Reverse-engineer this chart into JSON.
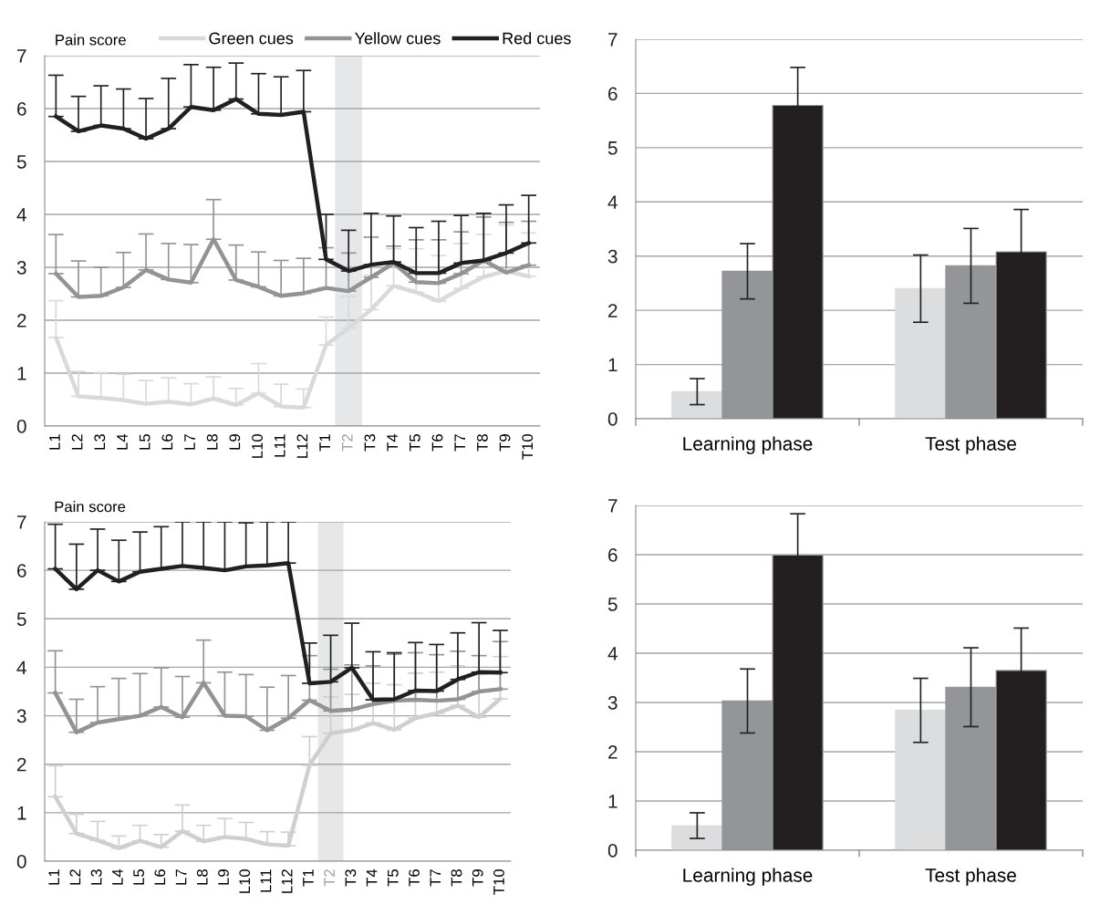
{
  "chart_data": [
    {
      "type": "line",
      "ylabel": "Pain score",
      "categories": [
        "L1",
        "L2",
        "L3",
        "L4",
        "L5",
        "L6",
        "L7",
        "L8",
        "L9",
        "L10",
        "L11",
        "L12",
        "T1",
        "T2",
        "T3",
        "T4",
        "T5",
        "T6",
        "T7",
        "T8",
        "T9",
        "T10"
      ],
      "ylim": [
        0,
        7
      ],
      "yticks": [
        0,
        1,
        2,
        3,
        4,
        5,
        6,
        7
      ],
      "grid": "y",
      "legend": "top",
      "marker": "none",
      "line_style": "solid",
      "bands": [
        {
          "axis": "x",
          "from": "T2",
          "to": "T2",
          "color": "#e6e7e8"
        }
      ],
      "series": [
        {
          "name": "Green cues",
          "color": "#d9d9d9",
          "values": [
            1.67,
            0.56,
            0.53,
            0.49,
            0.42,
            0.46,
            0.41,
            0.52,
            0.4,
            0.62,
            0.37,
            0.35,
            1.53,
            1.85,
            2.2,
            2.65,
            2.53,
            2.36,
            2.6,
            2.82,
            2.93,
            2.83
          ],
          "errors": [
            [
              1.67,
              2.37
            ],
            [
              0.56,
              1.03
            ],
            [
              0.53,
              1.01
            ],
            [
              0.49,
              0.98
            ],
            [
              0.42,
              0.86
            ],
            [
              0.46,
              0.91
            ],
            [
              0.41,
              0.8
            ],
            [
              0.52,
              0.93
            ],
            [
              0.4,
              0.71
            ],
            [
              0.62,
              1.18
            ],
            [
              0.37,
              0.79
            ],
            [
              0.35,
              0.7
            ],
            [
              1.53,
              2.06
            ],
            [
              1.85,
              2.45
            ],
            [
              2.2,
              2.85
            ],
            [
              2.65,
              3.35
            ],
            [
              2.53,
              3.35
            ],
            [
              2.36,
              3.22
            ],
            [
              2.6,
              3.45
            ],
            [
              2.82,
              3.62
            ],
            [
              2.93,
              3.8
            ],
            [
              2.83,
              3.65
            ]
          ]
        },
        {
          "name": "Yellow cues",
          "color": "#939393",
          "values": [
            2.88,
            2.44,
            2.46,
            2.62,
            2.95,
            2.77,
            2.71,
            3.53,
            2.76,
            2.63,
            2.46,
            2.51,
            2.61,
            2.55,
            2.81,
            3.08,
            2.72,
            2.7,
            2.88,
            3.13,
            2.9,
            3.04
          ],
          "errors": [
            [
              2.88,
              3.62
            ],
            [
              2.44,
              3.12
            ],
            [
              2.46,
              3.0
            ],
            [
              2.62,
              3.28
            ],
            [
              2.95,
              3.63
            ],
            [
              2.77,
              3.45
            ],
            [
              2.71,
              3.43
            ],
            [
              3.53,
              4.28
            ],
            [
              2.76,
              3.42
            ],
            [
              2.63,
              3.29
            ],
            [
              2.46,
              3.13
            ],
            [
              2.51,
              3.17
            ],
            [
              2.61,
              3.37
            ],
            [
              2.55,
              3.27
            ],
            [
              2.81,
              3.57
            ],
            [
              3.08,
              3.4
            ],
            [
              2.72,
              3.52
            ],
            [
              2.7,
              3.52
            ],
            [
              2.88,
              3.67
            ],
            [
              3.13,
              3.95
            ],
            [
              2.9,
              3.85
            ],
            [
              3.04,
              3.87
            ]
          ]
        },
        {
          "name": "Red cues",
          "color": "#231f20",
          "values": [
            5.85,
            5.57,
            5.68,
            5.62,
            5.43,
            5.62,
            6.03,
            5.97,
            6.18,
            5.9,
            5.88,
            5.94,
            3.15,
            2.93,
            3.05,
            3.1,
            2.89,
            2.89,
            3.08,
            3.13,
            3.27,
            3.46
          ],
          "errors": [
            [
              5.85,
              6.63
            ],
            [
              5.57,
              6.23
            ],
            [
              5.68,
              6.43
            ],
            [
              5.62,
              6.37
            ],
            [
              5.43,
              6.19
            ],
            [
              5.62,
              6.57
            ],
            [
              6.03,
              6.83
            ],
            [
              5.97,
              6.78
            ],
            [
              6.18,
              6.86
            ],
            [
              5.9,
              6.66
            ],
            [
              5.88,
              6.6
            ],
            [
              5.94,
              6.72
            ],
            [
              3.15,
              4.0
            ],
            [
              2.93,
              3.7
            ],
            [
              3.05,
              4.02
            ],
            [
              3.1,
              3.97
            ],
            [
              2.89,
              3.75
            ],
            [
              2.89,
              3.87
            ],
            [
              3.08,
              3.98
            ],
            [
              3.13,
              4.02
            ],
            [
              3.27,
              4.18
            ],
            [
              3.46,
              4.36
            ]
          ]
        }
      ]
    },
    {
      "type": "bar",
      "categories": [
        "Learning phase",
        "Test phase"
      ],
      "ylim": [
        0,
        7
      ],
      "yticks": [
        0,
        1,
        2,
        3,
        4,
        5,
        6,
        7
      ],
      "grid": "y",
      "series": [
        {
          "color": "#dcdddf",
          "values": [
            0.5,
            2.4
          ],
          "errors": [
            0.24,
            0.62
          ]
        },
        {
          "color": "#949598",
          "values": [
            2.72,
            2.82
          ],
          "errors": [
            0.51,
            0.69
          ]
        },
        {
          "color": "#231f20",
          "values": [
            5.78,
            3.08
          ],
          "errors": [
            0.7,
            0.78
          ]
        }
      ]
    },
    {
      "type": "line",
      "ylabel": "Pain score",
      "categories": [
        "L1",
        "L2",
        "L3",
        "L4",
        "L5",
        "L6",
        "L7",
        "L8",
        "L9",
        "L10",
        "L11",
        "L12",
        "T1",
        "T2",
        "T3",
        "T4",
        "T5",
        "T6",
        "T7",
        "T8",
        "T9",
        "T10"
      ],
      "ylim": [
        0,
        7
      ],
      "yticks": [
        0,
        1,
        2,
        3,
        4,
        5,
        6,
        7
      ],
      "grid": "y",
      "marker": "none",
      "line_style": "solid",
      "bands": [
        {
          "axis": "x",
          "from": "T2",
          "to": "T2",
          "color": "#e6e7e8"
        }
      ],
      "series": [
        {
          "color": "#cfcfcf",
          "values": [
            1.33,
            0.57,
            0.43,
            0.27,
            0.42,
            0.29,
            0.62,
            0.41,
            0.5,
            0.46,
            0.35,
            0.32,
            1.98,
            2.64,
            2.7,
            2.85,
            2.71,
            2.95,
            3.05,
            3.21,
            2.97,
            3.35
          ],
          "errors": [
            [
              1.33,
              1.97
            ],
            [
              0.57,
              0.97
            ],
            [
              0.43,
              0.82
            ],
            [
              0.27,
              0.52
            ],
            [
              0.42,
              0.74
            ],
            [
              0.29,
              0.55
            ],
            [
              0.62,
              1.16
            ],
            [
              0.41,
              0.74
            ],
            [
              0.5,
              0.88
            ],
            [
              0.46,
              0.8
            ],
            [
              0.35,
              0.61
            ],
            [
              0.32,
              0.6
            ],
            [
              1.98,
              2.57
            ],
            [
              2.64,
              3.39
            ],
            [
              2.7,
              3.44
            ],
            [
              2.85,
              3.67
            ],
            [
              2.71,
              3.64
            ],
            [
              2.95,
              3.88
            ],
            [
              3.05,
              3.9
            ],
            [
              3.21,
              4.03
            ],
            [
              2.97,
              3.86
            ],
            [
              3.35,
              4.22
            ]
          ]
        },
        {
          "color": "#939393",
          "values": [
            3.47,
            2.66,
            2.86,
            2.93,
            3.0,
            3.18,
            2.97,
            3.68,
            3.0,
            2.99,
            2.7,
            2.95,
            3.32,
            3.1,
            3.13,
            3.24,
            3.31,
            3.33,
            3.31,
            3.34,
            3.5,
            3.55
          ],
          "errors": [
            [
              3.47,
              4.34
            ],
            [
              2.66,
              3.34
            ],
            [
              2.86,
              3.6
            ],
            [
              2.93,
              3.77
            ],
            [
              3.0,
              3.87
            ],
            [
              3.18,
              3.99
            ],
            [
              2.97,
              3.81
            ],
            [
              3.68,
              4.56
            ],
            [
              3.0,
              3.9
            ],
            [
              2.99,
              3.85
            ],
            [
              2.7,
              3.59
            ],
            [
              2.95,
              3.83
            ],
            [
              3.32,
              4.24
            ],
            [
              3.1,
              3.96
            ],
            [
              3.13,
              4.05
            ],
            [
              3.24,
              4.03
            ],
            [
              3.31,
              4.27
            ],
            [
              3.33,
              4.3
            ],
            [
              3.31,
              4.26
            ],
            [
              3.34,
              4.33
            ],
            [
              3.5,
              4.24
            ],
            [
              3.55,
              4.53
            ]
          ]
        },
        {
          "color": "#231f20",
          "values": [
            6.03,
            5.61,
            6.0,
            5.77,
            5.97,
            6.03,
            6.09,
            6.05,
            6.0,
            6.08,
            6.1,
            6.15,
            3.67,
            3.7,
            3.99,
            3.33,
            3.34,
            3.52,
            3.51,
            3.75,
            3.9,
            3.89
          ],
          "errors": [
            [
              6.03,
              6.95
            ],
            [
              5.61,
              6.54
            ],
            [
              6.0,
              6.85
            ],
            [
              5.77,
              6.62
            ],
            [
              5.97,
              6.79
            ],
            [
              6.03,
              6.9
            ],
            [
              6.09,
              7.0
            ],
            [
              6.05,
              7.0
            ],
            [
              6.0,
              7.0
            ],
            [
              6.08,
              6.98
            ],
            [
              6.1,
              7.0
            ],
            [
              6.15,
              7.0
            ],
            [
              3.67,
              4.5
            ],
            [
              3.7,
              4.66
            ],
            [
              3.99,
              4.91
            ],
            [
              3.33,
              4.32
            ],
            [
              3.34,
              4.3
            ],
            [
              3.52,
              4.51
            ],
            [
              3.51,
              4.47
            ],
            [
              3.75,
              4.71
            ],
            [
              3.9,
              4.92
            ],
            [
              3.89,
              4.76
            ]
          ]
        }
      ]
    },
    {
      "type": "bar",
      "categories": [
        "Learning phase",
        "Test phase"
      ],
      "ylim": [
        0,
        7
      ],
      "yticks": [
        0,
        1,
        2,
        3,
        4,
        5,
        6,
        7
      ],
      "grid": "y",
      "series": [
        {
          "color": "#dcdddf",
          "values": [
            0.5,
            2.84
          ],
          "errors": [
            0.26,
            0.65
          ]
        },
        {
          "color": "#949598",
          "values": [
            3.03,
            3.31
          ],
          "errors": [
            0.65,
            0.8
          ]
        },
        {
          "color": "#231f20",
          "values": [
            5.99,
            3.65
          ],
          "errors": [
            0.84,
            0.86
          ]
        }
      ]
    }
  ]
}
